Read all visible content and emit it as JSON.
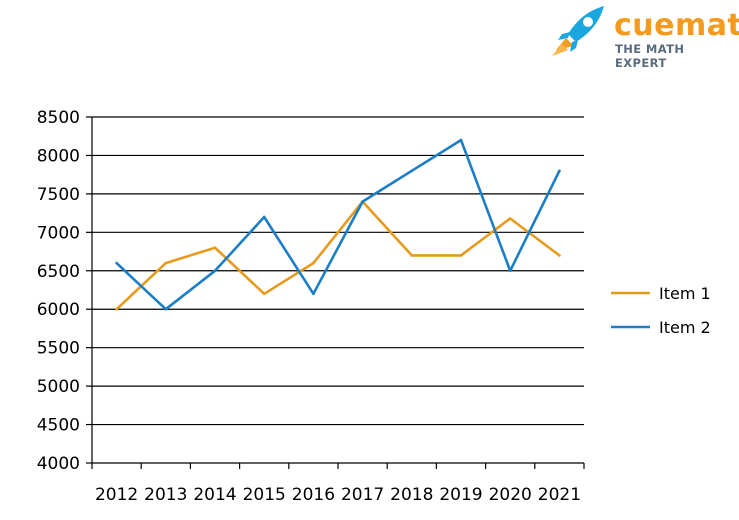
{
  "brand": {
    "name": "cuemath",
    "tagline": "THE MATH EXPERT",
    "colors": {
      "primary": "#f39a1f",
      "secondary": "#5a6b7d",
      "rocket": "#1aa7e0"
    },
    "icon": "rocket-icon"
  },
  "chart_data": {
    "type": "line",
    "title": "",
    "xlabel": "",
    "ylabel": "",
    "categories": [
      "2012",
      "2013",
      "2014",
      "2015",
      "2016",
      "2017",
      "2018",
      "2019",
      "2020",
      "2021"
    ],
    "y_ticks": [
      "4000",
      "4500",
      "5000",
      "5500",
      "6000",
      "6500",
      "7000",
      "7500",
      "8000",
      "8500"
    ],
    "ylim": [
      4000,
      8500
    ],
    "grid": "horizontal",
    "legend_position": "right",
    "series": [
      {
        "name": "Item 1",
        "color": "#e69b1c",
        "values": [
          6000,
          6600,
          6800,
          6200,
          6600,
          7400,
          6700,
          6700,
          7180,
          6700
        ]
      },
      {
        "name": "Item 2",
        "color": "#1b7ec6",
        "values": [
          6600,
          6000,
          6500,
          7200,
          6200,
          7400,
          7800,
          8200,
          6500,
          7800
        ]
      }
    ]
  }
}
